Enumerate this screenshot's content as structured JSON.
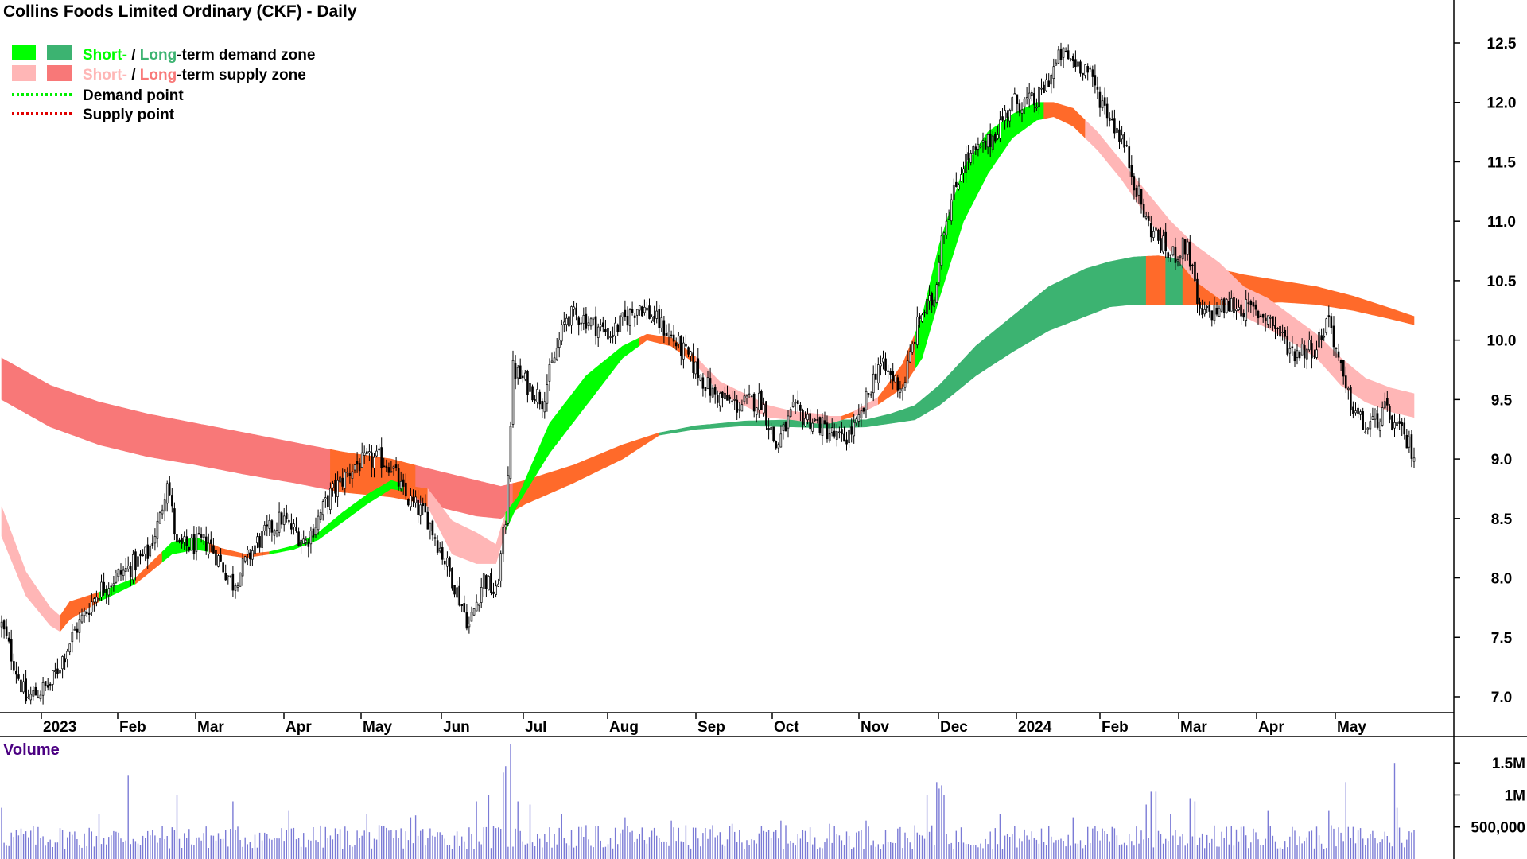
{
  "chart_data": {
    "type": "candlestick",
    "title": "Collins Foods Limited Ordinary (CKF) - Daily",
    "legend": {
      "placement": "top-left",
      "entries": [
        {
          "prefix": "Short-",
          "sep": " / ",
          "mid": "Long",
          "suffix": "-term demand zone",
          "short_color": "#00ff00",
          "long_color": "#3cb371",
          "style": "box"
        },
        {
          "prefix": "Short-",
          "sep": " / ",
          "mid": "Long",
          "suffix": "-term supply zone",
          "short_color": "#ffb6b6",
          "long_color": "#f87878",
          "style": "box"
        },
        {
          "label": "Demand point",
          "color": "#00ee00",
          "style": "dotted"
        },
        {
          "label": "Supply point",
          "color": "#e00000",
          "style": "dotted"
        }
      ]
    },
    "x_labels": [
      "2023",
      "Feb",
      "Mar",
      "Apr",
      "May",
      "Jun",
      "Jul",
      "Aug",
      "Sep",
      "Oct",
      "Nov",
      "Dec",
      "2024",
      "Feb",
      "Mar",
      "Apr",
      "May"
    ],
    "y_ticks": [
      7.0,
      7.5,
      8.0,
      8.5,
      9.0,
      9.5,
      10.0,
      10.5,
      11.0,
      11.5,
      12.0,
      12.5
    ],
    "ylim": [
      6.83,
      12.8
    ],
    "grid": false,
    "price_anchors": [
      [
        0,
        7.6
      ],
      [
        10,
        6.98
      ],
      [
        20,
        7.1
      ],
      [
        30,
        7.55
      ],
      [
        40,
        7.9
      ],
      [
        50,
        8.05
      ],
      [
        60,
        8.2
      ],
      [
        65,
        8.5
      ],
      [
        68,
        8.85
      ],
      [
        72,
        8.25
      ],
      [
        85,
        8.3
      ],
      [
        95,
        7.95
      ],
      [
        105,
        8.3
      ],
      [
        115,
        8.5
      ],
      [
        125,
        8.3
      ],
      [
        135,
        8.7
      ],
      [
        145,
        8.95
      ],
      [
        155,
        9.0
      ],
      [
        160,
        8.95
      ],
      [
        165,
        8.7
      ],
      [
        175,
        8.5
      ],
      [
        185,
        8.0
      ],
      [
        192,
        7.6
      ],
      [
        198,
        8.0
      ],
      [
        203,
        7.85
      ],
      [
        207,
        8.5
      ],
      [
        210,
        9.75
      ],
      [
        222,
        9.5
      ],
      [
        232,
        10.2
      ],
      [
        238,
        10.2
      ],
      [
        250,
        10.05
      ],
      [
        262,
        10.3
      ],
      [
        272,
        10.1
      ],
      [
        282,
        9.85
      ],
      [
        292,
        9.55
      ],
      [
        302,
        9.45
      ],
      [
        312,
        9.5
      ],
      [
        318,
        9.1
      ],
      [
        325,
        9.4
      ],
      [
        335,
        9.3
      ],
      [
        345,
        9.15
      ],
      [
        352,
        9.3
      ],
      [
        360,
        9.8
      ],
      [
        370,
        9.6
      ],
      [
        377,
        10.2
      ],
      [
        383,
        10.35
      ],
      [
        386,
        10.9
      ],
      [
        395,
        11.5
      ],
      [
        405,
        11.65
      ],
      [
        415,
        12.0
      ],
      [
        425,
        12.0
      ],
      [
        435,
        12.4
      ],
      [
        445,
        12.3
      ],
      [
        452,
        12.0
      ],
      [
        460,
        11.7
      ],
      [
        470,
        11.0
      ],
      [
        480,
        10.7
      ],
      [
        487,
        10.8
      ],
      [
        492,
        10.2
      ],
      [
        505,
        10.3
      ],
      [
        520,
        10.2
      ],
      [
        530,
        9.9
      ],
      [
        540,
        9.95
      ],
      [
        545,
        10.2
      ],
      [
        552,
        9.55
      ],
      [
        560,
        9.25
      ],
      [
        568,
        9.4
      ],
      [
        575,
        9.2
      ],
      [
        580,
        9.05
      ]
    ],
    "short_zone": [
      [
        0,
        8.6,
        8.35
      ],
      [
        10,
        8.05,
        7.85
      ],
      [
        20,
        7.75,
        7.6
      ],
      [
        24,
        7.68,
        7.55
      ],
      [
        28,
        7.8,
        7.65
      ],
      [
        40,
        7.88,
        7.8
      ],
      [
        55,
        8.0,
        7.95
      ],
      [
        70,
        8.3,
        8.2
      ],
      [
        80,
        8.34,
        8.24
      ],
      [
        90,
        8.25,
        8.2
      ],
      [
        100,
        8.2,
        8.17
      ],
      [
        110,
        8.22,
        8.2
      ],
      [
        120,
        8.27,
        8.24
      ],
      [
        130,
        8.38,
        8.32
      ],
      [
        140,
        8.55,
        8.47
      ],
      [
        150,
        8.7,
        8.62
      ],
      [
        160,
        8.82,
        8.75
      ],
      [
        168,
        8.77,
        8.72
      ],
      [
        175,
        8.75,
        8.6
      ],
      [
        185,
        8.48,
        8.2
      ],
      [
        195,
        8.38,
        8.12
      ],
      [
        203,
        8.28,
        8.12
      ],
      [
        207,
        8.55,
        8.4
      ],
      [
        212,
        8.68,
        8.62
      ],
      [
        225,
        9.3,
        9.05
      ],
      [
        240,
        9.7,
        9.45
      ],
      [
        255,
        9.95,
        9.85
      ],
      [
        265,
        10.05,
        10.0
      ],
      [
        275,
        10.02,
        9.95
      ],
      [
        285,
        9.86,
        9.8
      ],
      [
        295,
        9.65,
        9.55
      ],
      [
        305,
        9.55,
        9.45
      ],
      [
        315,
        9.45,
        9.35
      ],
      [
        325,
        9.4,
        9.33
      ],
      [
        335,
        9.38,
        9.3
      ],
      [
        340,
        9.36,
        9.3
      ],
      [
        345,
        9.36,
        9.33
      ],
      [
        350,
        9.4,
        9.36
      ],
      [
        360,
        9.52,
        9.46
      ],
      [
        370,
        9.8,
        9.6
      ],
      [
        378,
        10.2,
        9.85
      ],
      [
        385,
        10.8,
        10.35
      ],
      [
        395,
        11.45,
        11.0
      ],
      [
        405,
        11.75,
        11.4
      ],
      [
        415,
        11.9,
        11.7
      ],
      [
        425,
        12.0,
        11.85
      ],
      [
        432,
        12.0,
        11.88
      ],
      [
        440,
        11.95,
        11.8
      ],
      [
        450,
        11.75,
        11.6
      ],
      [
        460,
        11.5,
        11.35
      ],
      [
        470,
        11.25,
        11.05
      ],
      [
        480,
        11.0,
        10.75
      ],
      [
        490,
        10.8,
        10.5
      ],
      [
        500,
        10.65,
        10.35
      ],
      [
        510,
        10.45,
        10.2
      ],
      [
        520,
        10.35,
        10.1
      ],
      [
        530,
        10.2,
        9.98
      ],
      [
        540,
        10.05,
        9.85
      ],
      [
        550,
        9.85,
        9.62
      ],
      [
        560,
        9.68,
        9.48
      ],
      [
        570,
        9.6,
        9.4
      ],
      [
        580,
        9.55,
        9.35
      ]
    ],
    "short_zone_sides": [
      [
        0,
        24,
        "supply"
      ],
      [
        24,
        40,
        "contested"
      ],
      [
        40,
        55,
        "demand"
      ],
      [
        55,
        66,
        "contested"
      ],
      [
        66,
        85,
        "demand"
      ],
      [
        85,
        110,
        "contested"
      ],
      [
        110,
        165,
        "demand"
      ],
      [
        165,
        175,
        "contested"
      ],
      [
        175,
        207,
        "supply"
      ],
      [
        207,
        262,
        "demand"
      ],
      [
        262,
        285,
        "contested"
      ],
      [
        285,
        345,
        "supply"
      ],
      [
        345,
        350,
        "contested"
      ],
      [
        350,
        360,
        "supply"
      ],
      [
        360,
        375,
        "contested"
      ],
      [
        375,
        428,
        "demand"
      ],
      [
        428,
        445,
        "contested"
      ],
      [
        445,
        580,
        "supply"
      ]
    ],
    "long_zone": [
      [
        0,
        9.85,
        9.5
      ],
      [
        20,
        9.62,
        9.27
      ],
      [
        40,
        9.48,
        9.12
      ],
      [
        60,
        9.38,
        9.02
      ],
      [
        80,
        9.3,
        8.95
      ],
      [
        100,
        9.22,
        8.87
      ],
      [
        120,
        9.14,
        8.8
      ],
      [
        140,
        9.06,
        8.72
      ],
      [
        160,
        9.0,
        8.68
      ],
      [
        175,
        8.92,
        8.62
      ],
      [
        195,
        8.82,
        8.52
      ],
      [
        205,
        8.77,
        8.5
      ],
      [
        215,
        8.82,
        8.62
      ],
      [
        235,
        8.95,
        8.8
      ],
      [
        255,
        9.12,
        9.0
      ],
      [
        270,
        9.22,
        9.2
      ],
      [
        285,
        9.28,
        9.25
      ],
      [
        305,
        9.32,
        9.28
      ],
      [
        325,
        9.33,
        9.27
      ],
      [
        340,
        9.33,
        9.26
      ],
      [
        355,
        9.33,
        9.27
      ],
      [
        365,
        9.38,
        9.3
      ],
      [
        375,
        9.45,
        9.33
      ],
      [
        385,
        9.62,
        9.45
      ],
      [
        400,
        9.95,
        9.7
      ],
      [
        415,
        10.2,
        9.9
      ],
      [
        430,
        10.45,
        10.08
      ],
      [
        445,
        10.6,
        10.2
      ],
      [
        455,
        10.66,
        10.28
      ],
      [
        465,
        10.7,
        10.3
      ],
      [
        475,
        10.71,
        10.3
      ],
      [
        485,
        10.68,
        10.3
      ],
      [
        495,
        10.62,
        10.3
      ],
      [
        510,
        10.55,
        10.3
      ],
      [
        525,
        10.5,
        10.32
      ],
      [
        540,
        10.45,
        10.3
      ],
      [
        555,
        10.37,
        10.25
      ],
      [
        570,
        10.27,
        10.18
      ],
      [
        580,
        10.2,
        10.13
      ]
    ],
    "long_zone_sides": [
      [
        0,
        135,
        "supply"
      ],
      [
        135,
        170,
        "contested"
      ],
      [
        170,
        210,
        "supply"
      ],
      [
        210,
        270,
        "contested"
      ],
      [
        270,
        470,
        "demand"
      ],
      [
        470,
        478,
        "contested"
      ],
      [
        478,
        485,
        "demand"
      ],
      [
        485,
        580,
        "contested"
      ]
    ],
    "colors": {
      "candle_up": "#ffffff",
      "candle_down": "#000000",
      "candle_outline": "#000000",
      "demand_short": "#00ff00",
      "demand_long": "#3cb371",
      "supply_short": "#ffb6b6",
      "supply_long": "#f87878",
      "contested": "#ff6a2a",
      "volume_bar": "#7b7bd6",
      "volume_title": "#4b0082",
      "axis": "#000000"
    },
    "volume": {
      "title": "Volume",
      "y_ticks": [
        {
          "value": 500000,
          "label": "500,000"
        },
        {
          "value": 1000000,
          "label": "1M"
        },
        {
          "value": 1500000,
          "label": "1.5M"
        }
      ],
      "ylim": [
        0,
        1800000
      ],
      "spikes": [
        [
          0,
          800000
        ],
        [
          40,
          700000
        ],
        [
          52,
          1300000
        ],
        [
          72,
          1000000
        ],
        [
          95,
          900000
        ],
        [
          118,
          750000
        ],
        [
          150,
          700000
        ],
        [
          168,
          650000
        ],
        [
          170,
          680000
        ],
        [
          195,
          900000
        ],
        [
          200,
          1000000
        ],
        [
          206,
          1350000
        ],
        [
          207,
          1450000
        ],
        [
          209,
          1800000
        ],
        [
          212,
          900000
        ],
        [
          217,
          850000
        ],
        [
          230,
          700000
        ],
        [
          256,
          650000
        ],
        [
          275,
          600000
        ],
        [
          300,
          550000
        ],
        [
          320,
          600000
        ],
        [
          340,
          550000
        ],
        [
          355,
          600000
        ],
        [
          380,
          1000000
        ],
        [
          384,
          1200000
        ],
        [
          385,
          1100000
        ],
        [
          386,
          1150000
        ],
        [
          387,
          1000000
        ],
        [
          410,
          700000
        ],
        [
          440,
          650000
        ],
        [
          470,
          850000
        ],
        [
          472,
          1050000
        ],
        [
          474,
          1050000
        ],
        [
          480,
          700000
        ],
        [
          488,
          950000
        ],
        [
          490,
          900000
        ],
        [
          520,
          750000
        ],
        [
          545,
          750000
        ],
        [
          552,
          1200000
        ],
        [
          572,
          1500000
        ],
        [
          573,
          800000
        ]
      ]
    }
  }
}
